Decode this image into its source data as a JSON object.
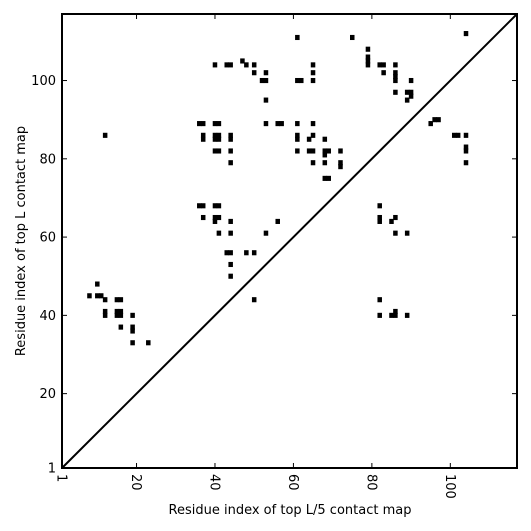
{
  "chart_data": {
    "type": "scatter",
    "title": "",
    "xlabel": "Residue index of top L/5 contact map",
    "ylabel": "Residue index of top L contact map",
    "xlim": [
      1,
      117
    ],
    "ylim": [
      1,
      117
    ],
    "xticks": [
      {
        "value": 1,
        "label": "1"
      },
      {
        "value": 20,
        "label": "20"
      },
      {
        "value": 40,
        "label": "40"
      },
      {
        "value": 60,
        "label": "60"
      },
      {
        "value": 80,
        "label": "80"
      },
      {
        "value": 100,
        "label": "100"
      }
    ],
    "yticks": [
      {
        "value": 1,
        "label": "1"
      },
      {
        "value": 20,
        "label": "20"
      },
      {
        "value": 40,
        "label": "40"
      },
      {
        "value": 60,
        "label": "60"
      },
      {
        "value": 80,
        "label": "80"
      },
      {
        "value": 100,
        "label": "100"
      }
    ],
    "grid": false,
    "diagonal_line": true,
    "marker": "square",
    "color": "#000000",
    "points": [
      [
        8,
        45
      ],
      [
        10,
        48
      ],
      [
        10,
        45
      ],
      [
        11,
        45
      ],
      [
        12,
        44
      ],
      [
        12,
        41
      ],
      [
        12,
        40
      ],
      [
        12,
        86
      ],
      [
        15,
        44
      ],
      [
        16,
        44
      ],
      [
        15,
        41
      ],
      [
        16,
        41
      ],
      [
        15,
        40
      ],
      [
        16,
        40
      ],
      [
        16,
        37
      ],
      [
        19,
        40
      ],
      [
        19,
        37
      ],
      [
        19,
        36
      ],
      [
        19,
        33
      ],
      [
        23,
        33
      ],
      [
        36,
        89
      ],
      [
        37,
        89
      ],
      [
        37,
        86
      ],
      [
        37,
        85
      ],
      [
        36,
        68
      ],
      [
        37,
        68
      ],
      [
        37,
        65
      ],
      [
        40,
        89
      ],
      [
        41,
        89
      ],
      [
        40,
        86
      ],
      [
        41,
        86
      ],
      [
        40,
        85
      ],
      [
        41,
        85
      ],
      [
        40,
        82
      ],
      [
        41,
        82
      ],
      [
        40,
        68
      ],
      [
        41,
        68
      ],
      [
        40,
        65
      ],
      [
        41,
        65
      ],
      [
        40,
        64
      ],
      [
        41,
        61
      ],
      [
        43,
        104
      ],
      [
        44,
        104
      ],
      [
        44,
        86
      ],
      [
        44,
        85
      ],
      [
        44,
        82
      ],
      [
        44,
        79
      ],
      [
        44,
        64
      ],
      [
        44,
        61
      ],
      [
        43,
        56
      ],
      [
        44,
        56
      ],
      [
        44,
        53
      ],
      [
        44,
        50
      ],
      [
        40,
        104
      ],
      [
        47,
        105
      ],
      [
        48,
        104
      ],
      [
        50,
        104
      ],
      [
        50,
        102
      ],
      [
        52,
        100
      ],
      [
        53,
        100
      ],
      [
        53,
        102
      ],
      [
        53,
        95
      ],
      [
        53,
        89
      ],
      [
        56,
        89
      ],
      [
        57,
        89
      ],
      [
        48,
        56
      ],
      [
        50,
        56
      ],
      [
        50,
        44
      ],
      [
        53,
        61
      ],
      [
        56,
        64
      ],
      [
        61,
        111
      ],
      [
        61,
        100
      ],
      [
        62,
        100
      ],
      [
        61,
        89
      ],
      [
        61,
        86
      ],
      [
        61,
        85
      ],
      [
        61,
        82
      ],
      [
        65,
        104
      ],
      [
        65,
        102
      ],
      [
        65,
        100
      ],
      [
        65,
        89
      ],
      [
        64,
        85
      ],
      [
        65,
        86
      ],
      [
        64,
        82
      ],
      [
        65,
        82
      ],
      [
        65,
        79
      ],
      [
        68,
        85
      ],
      [
        68,
        82
      ],
      [
        69,
        82
      ],
      [
        68,
        81
      ],
      [
        68,
        79
      ],
      [
        68,
        75
      ],
      [
        69,
        75
      ],
      [
        72,
        82
      ],
      [
        72,
        79
      ],
      [
        72,
        78
      ],
      [
        75,
        111
      ],
      [
        79,
        108
      ],
      [
        79,
        106
      ],
      [
        79,
        105
      ],
      [
        79,
        104
      ],
      [
        82,
        104
      ],
      [
        83,
        104
      ],
      [
        83,
        102
      ],
      [
        86,
        104
      ],
      [
        86,
        102
      ],
      [
        86,
        101
      ],
      [
        86,
        100
      ],
      [
        86,
        97
      ],
      [
        89,
        97
      ],
      [
        89,
        95
      ],
      [
        90,
        100
      ],
      [
        90,
        97
      ],
      [
        90,
        96
      ],
      [
        95,
        89
      ],
      [
        96,
        90
      ],
      [
        97,
        90
      ],
      [
        101,
        86
      ],
      [
        102,
        86
      ],
      [
        104,
        86
      ],
      [
        104,
        83
      ],
      [
        104,
        82
      ],
      [
        104,
        79
      ],
      [
        104,
        112
      ],
      [
        82,
        68
      ],
      [
        82,
        65
      ],
      [
        82,
        64
      ],
      [
        85,
        64
      ],
      [
        86,
        65
      ],
      [
        86,
        61
      ],
      [
        89,
        61
      ],
      [
        82,
        44
      ],
      [
        82,
        40
      ],
      [
        85,
        40
      ],
      [
        86,
        41
      ],
      [
        86,
        40
      ],
      [
        89,
        40
      ]
    ]
  }
}
